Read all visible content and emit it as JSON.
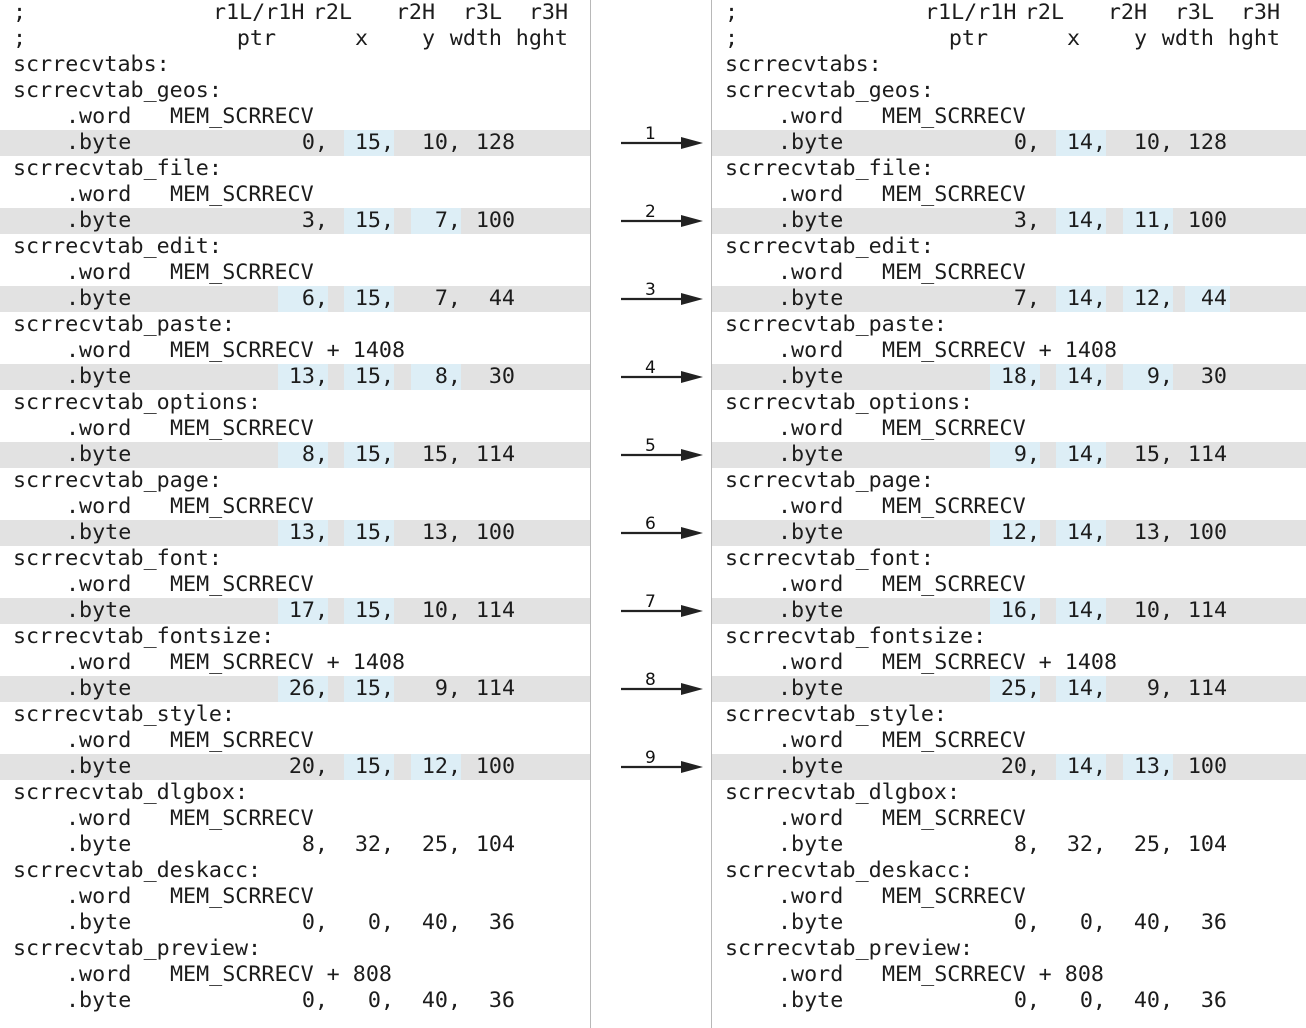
{
  "header": {
    "line1": {
      "semicolon": ";",
      "c1": "r1L/r1H",
      "c2": "r2L",
      "c3": "r2H",
      "c4": "r3L",
      "c5": "r3H"
    },
    "line2": {
      "semicolon": ";",
      "c1": "ptr",
      "c2": "x",
      "c3": "y",
      "c4": "wdth",
      "c5": "hght"
    }
  },
  "root_label": "scrrecvtabs:",
  "word_directive": ".word",
  "byte_directive": ".byte",
  "left": {
    "entries": [
      {
        "label": "scrrecvtab_geos:",
        "word": "MEM_SCRRECV",
        "vals": [
          "0,",
          "15,",
          "10,",
          "128"
        ],
        "changed": [
          false,
          true,
          false,
          false
        ],
        "highlight": true
      },
      {
        "label": "scrrecvtab_file:",
        "word": "MEM_SCRRECV",
        "vals": [
          "3,",
          "15,",
          "7,",
          "100"
        ],
        "changed": [
          false,
          true,
          true,
          false
        ],
        "highlight": true
      },
      {
        "label": "scrrecvtab_edit:",
        "word": "MEM_SCRRECV",
        "vals": [
          "6,",
          "15,",
          "7,",
          "44"
        ],
        "changed": [
          true,
          true,
          false,
          false
        ],
        "highlight": true
      },
      {
        "label": "scrrecvtab_paste:",
        "word": "MEM_SCRRECV + 1408",
        "vals": [
          "13,",
          "15,",
          "8,",
          "30"
        ],
        "changed": [
          true,
          true,
          true,
          false
        ],
        "highlight": true
      },
      {
        "label": "scrrecvtab_options:",
        "word": "MEM_SCRRECV",
        "vals": [
          "8,",
          "15,",
          "15,",
          "114"
        ],
        "changed": [
          true,
          true,
          false,
          false
        ],
        "highlight": true
      },
      {
        "label": "scrrecvtab_page:",
        "word": "MEM_SCRRECV",
        "vals": [
          "13,",
          "15,",
          "13,",
          "100"
        ],
        "changed": [
          true,
          true,
          false,
          false
        ],
        "highlight": true
      },
      {
        "label": "scrrecvtab_font:",
        "word": "MEM_SCRRECV",
        "vals": [
          "17,",
          "15,",
          "10,",
          "114"
        ],
        "changed": [
          true,
          true,
          false,
          false
        ],
        "highlight": true
      },
      {
        "label": "scrrecvtab_fontsize:",
        "word": "MEM_SCRRECV + 1408",
        "vals": [
          "26,",
          "15,",
          "9,",
          "114"
        ],
        "changed": [
          true,
          true,
          false,
          false
        ],
        "highlight": true
      },
      {
        "label": "scrrecvtab_style:",
        "word": "MEM_SCRRECV",
        "vals": [
          "20,",
          "15,",
          "12,",
          "100"
        ],
        "changed": [
          false,
          true,
          true,
          false
        ],
        "highlight": true
      },
      {
        "label": "scrrecvtab_dlgbox:",
        "word": "MEM_SCRRECV",
        "vals": [
          "8,",
          "32,",
          "25,",
          "104"
        ],
        "changed": [
          false,
          false,
          false,
          false
        ],
        "highlight": false
      },
      {
        "label": "scrrecvtab_deskacc:",
        "word": "MEM_SCRRECV",
        "vals": [
          "0,",
          "0,",
          "40,",
          "36"
        ],
        "changed": [
          false,
          false,
          false,
          false
        ],
        "highlight": false
      },
      {
        "label": "scrrecvtab_preview:",
        "word": "MEM_SCRRECV + 808",
        "vals": [
          "0,",
          "0,",
          "40,",
          "36"
        ],
        "changed": [
          false,
          false,
          false,
          false
        ],
        "highlight": false
      }
    ]
  },
  "right": {
    "entries": [
      {
        "label": "scrrecvtab_geos:",
        "word": "MEM_SCRRECV",
        "vals": [
          "0,",
          "14,",
          "10,",
          "128"
        ],
        "changed": [
          false,
          true,
          false,
          false
        ],
        "highlight": true
      },
      {
        "label": "scrrecvtab_file:",
        "word": "MEM_SCRRECV",
        "vals": [
          "3,",
          "14,",
          "11,",
          "100"
        ],
        "changed": [
          false,
          true,
          true,
          false
        ],
        "highlight": true
      },
      {
        "label": "scrrecvtab_edit:",
        "word": "MEM_SCRRECV",
        "vals": [
          "7,",
          "14,",
          "12,",
          "44"
        ],
        "changed": [
          false,
          true,
          true,
          true
        ],
        "highlight": true
      },
      {
        "label": "scrrecvtab_paste:",
        "word": "MEM_SCRRECV + 1408",
        "vals": [
          "18,",
          "14,",
          "9,",
          "30"
        ],
        "changed": [
          true,
          true,
          true,
          false
        ],
        "highlight": true
      },
      {
        "label": "scrrecvtab_options:",
        "word": "MEM_SCRRECV",
        "vals": [
          "9,",
          "14,",
          "15,",
          "114"
        ],
        "changed": [
          true,
          true,
          false,
          false
        ],
        "highlight": true
      },
      {
        "label": "scrrecvtab_page:",
        "word": "MEM_SCRRECV",
        "vals": [
          "12,",
          "14,",
          "13,",
          "100"
        ],
        "changed": [
          true,
          true,
          false,
          false
        ],
        "highlight": true
      },
      {
        "label": "scrrecvtab_font:",
        "word": "MEM_SCRRECV",
        "vals": [
          "16,",
          "14,",
          "10,",
          "114"
        ],
        "changed": [
          true,
          true,
          false,
          false
        ],
        "highlight": true
      },
      {
        "label": "scrrecvtab_fontsize:",
        "word": "MEM_SCRRECV + 1408",
        "vals": [
          "25,",
          "14,",
          "9,",
          "114"
        ],
        "changed": [
          true,
          true,
          false,
          false
        ],
        "highlight": true
      },
      {
        "label": "scrrecvtab_style:",
        "word": "MEM_SCRRECV",
        "vals": [
          "20,",
          "14,",
          "13,",
          "100"
        ],
        "changed": [
          false,
          true,
          true,
          false
        ],
        "highlight": true
      },
      {
        "label": "scrrecvtab_dlgbox:",
        "word": "MEM_SCRRECV",
        "vals": [
          "8,",
          "32,",
          "25,",
          "104"
        ],
        "changed": [
          false,
          false,
          false,
          false
        ],
        "highlight": false
      },
      {
        "label": "scrrecvtab_deskacc:",
        "word": "MEM_SCRRECV",
        "vals": [
          "0,",
          "0,",
          "40,",
          "36"
        ],
        "changed": [
          false,
          false,
          false,
          false
        ],
        "highlight": false
      },
      {
        "label": "scrrecvtab_preview:",
        "word": "MEM_SCRRECV + 808",
        "vals": [
          "0,",
          "0,",
          "40,",
          "36"
        ],
        "changed": [
          false,
          false,
          false,
          false
        ],
        "highlight": false
      }
    ]
  },
  "arrows": [
    "1",
    "2",
    "3",
    "4",
    "5",
    "6",
    "7",
    "8",
    "9"
  ],
  "colors": {
    "row_highlight": "#e2e2e2",
    "changed_value": "#ddeef6",
    "arrow": "#222222"
  }
}
